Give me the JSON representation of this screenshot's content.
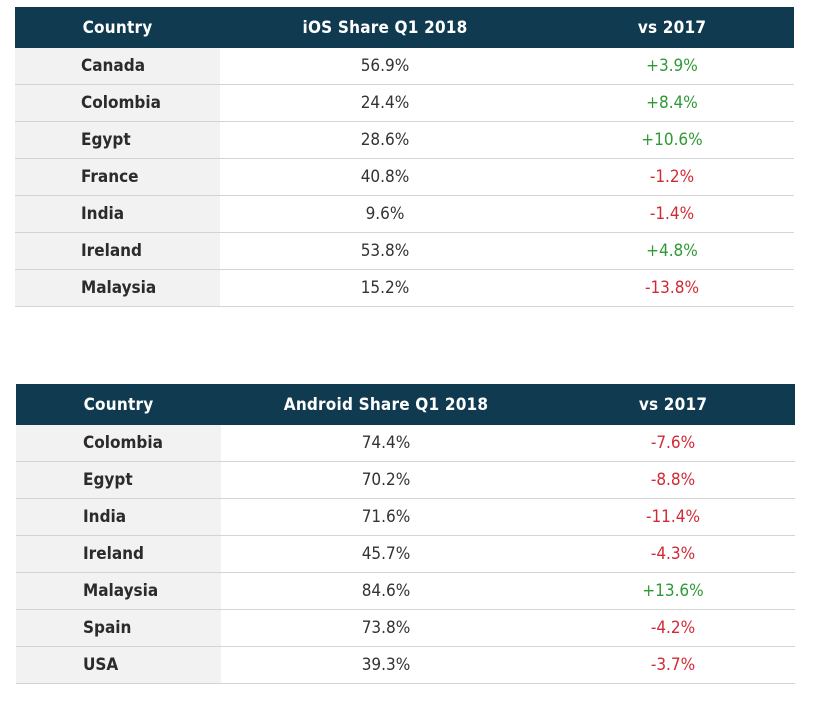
{
  "ios_table": {
    "headers": [
      "Country",
      "iOS Share Q1 2018",
      "vs 2017"
    ],
    "rows": [
      {
        "country": "Canada",
        "share": "56.9%",
        "change": "+3.9%",
        "trend": "pos"
      },
      {
        "country": "Colombia",
        "share": "24.4%",
        "change": "+8.4%",
        "trend": "pos"
      },
      {
        "country": "Egypt",
        "share": "28.6%",
        "change": "+10.6%",
        "trend": "pos"
      },
      {
        "country": "France",
        "share": "40.8%",
        "change": "-1.2%",
        "trend": "neg"
      },
      {
        "country": "India",
        "share": "9.6%",
        "change": "-1.4%",
        "trend": "neg"
      },
      {
        "country": "Ireland",
        "share": "53.8%",
        "change": "+4.8%",
        "trend": "pos"
      },
      {
        "country": "Malaysia",
        "share": "15.2%",
        "change": "-13.8%",
        "trend": "neg"
      }
    ]
  },
  "android_table": {
    "headers": [
      "Country",
      "Android Share Q1 2018",
      "vs 2017"
    ],
    "rows": [
      {
        "country": "Colombia",
        "share": "74.4%",
        "change": "-7.6%",
        "trend": "neg"
      },
      {
        "country": "Egypt",
        "share": "70.2%",
        "change": "-8.8%",
        "trend": "neg"
      },
      {
        "country": "India",
        "share": "71.6%",
        "change": "-11.4%",
        "trend": "neg"
      },
      {
        "country": "Ireland",
        "share": "45.7%",
        "change": "-4.3%",
        "trend": "neg"
      },
      {
        "country": "Malaysia",
        "share": "84.6%",
        "change": "+13.6%",
        "trend": "pos"
      },
      {
        "country": "Spain",
        "share": "73.8%",
        "change": "-4.2%",
        "trend": "neg"
      },
      {
        "country": "USA",
        "share": "39.3%",
        "change": "-3.7%",
        "trend": "neg"
      }
    ]
  },
  "colors": {
    "header_bg": "#0f3a4f",
    "header_text": "#ffffff",
    "country_bg": "#f2f2f2",
    "positive": "#2e9a36",
    "negative": "#d12a35",
    "row_border": "#d4d4d4"
  }
}
